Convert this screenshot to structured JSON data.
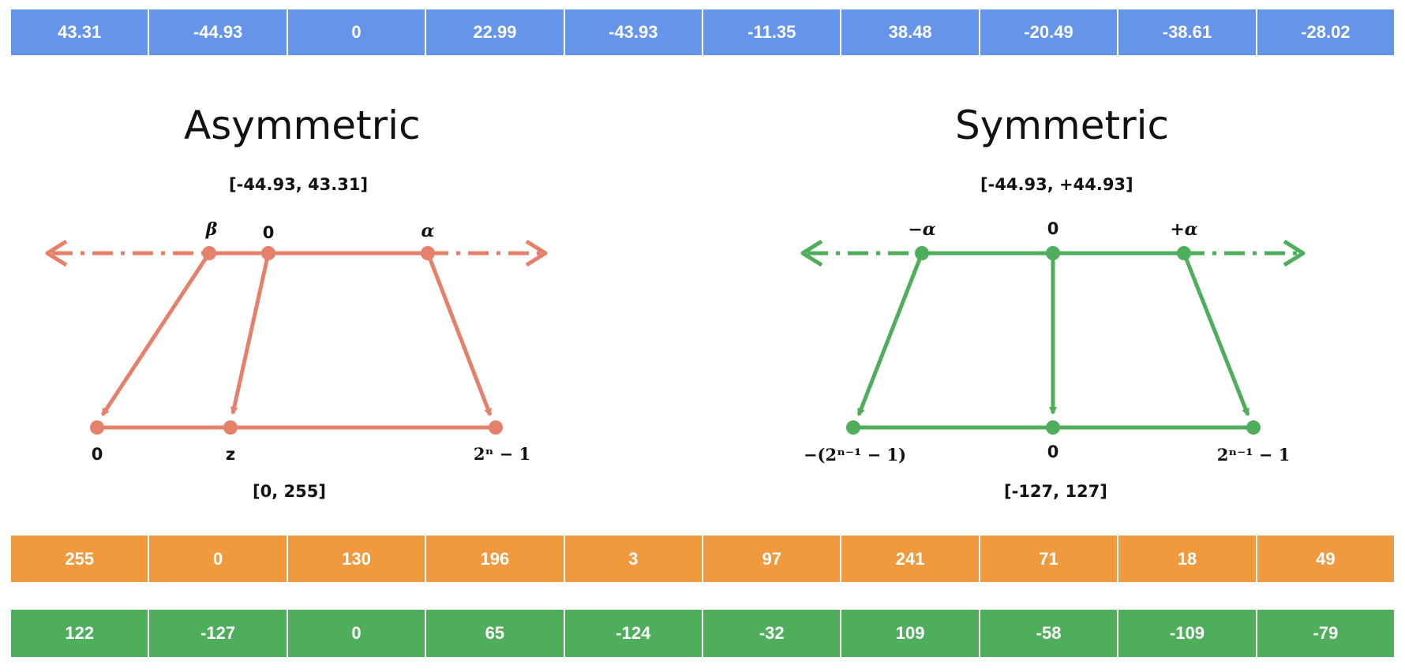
{
  "float_values": [
    "43.31",
    "-44.93",
    "0",
    "22.99",
    "-43.93",
    "-11.35",
    "38.48",
    "-20.49",
    "-38.61",
    "-28.02"
  ],
  "asymmetric": {
    "title": "Asymmetric",
    "input_range": "[-44.93, 43.31]",
    "top_labels": {
      "beta": "β",
      "zero": "0",
      "alpha": "α"
    },
    "bottom_labels": {
      "zero": "0",
      "z": "z",
      "max": "2ⁿ − 1"
    },
    "output_range": "[0, 255]",
    "color": "#e5806b"
  },
  "symmetric": {
    "title": "Symmetric",
    "input_range": "[-44.93, +44.93]",
    "top_labels": {
      "neg_alpha": "−α",
      "zero": "0",
      "pos_alpha": "+α"
    },
    "bottom_labels": {
      "min": "−(2ⁿ⁻¹ − 1)",
      "zero": "0",
      "max": "2ⁿ⁻¹ − 1"
    },
    "output_range": "[-127, 127]",
    "color": "#4eae5b"
  },
  "asymmetric_values": [
    "255",
    "0",
    "130",
    "196",
    "3",
    "97",
    "241",
    "71",
    "18",
    "49"
  ],
  "symmetric_values": [
    "122",
    "-127",
    "0",
    "65",
    "-124",
    "-32",
    "109",
    "-58",
    "-109",
    "-79"
  ],
  "colors": {
    "float_row": "#6495ea",
    "asym_row": "#f09a3d",
    "sym_row": "#4eae5b"
  }
}
